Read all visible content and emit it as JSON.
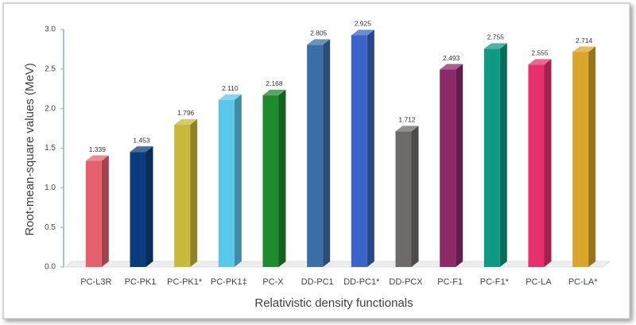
{
  "chart_data": {
    "type": "bar3d",
    "y_label": "Root-mean-square values (MeV)",
    "x_label": "Relativistic density functionals",
    "categories": [
      "PC-L3R",
      "PC-PK1",
      "PC-PK1*",
      "PC-PK1‡",
      "PC-X",
      "DD-PC1",
      "DD-PC1*",
      "DD-PCX",
      "PC-F1",
      "PC-F1*",
      "PC-LA",
      "PC-LA*"
    ],
    "values": [
      1.339,
      1.453,
      1.796,
      2.11,
      2.168,
      2.805,
      2.925,
      1.712,
      2.493,
      2.755,
      2.555,
      2.714
    ],
    "value_labels": [
      "1.339",
      "1.453",
      "1.796",
      "2.110",
      "2.168",
      "2.805",
      "2.925",
      "1.712",
      "2.493",
      "2.755",
      "2.555",
      "2.714"
    ],
    "colors": [
      "#e8606e",
      "#0b3d7e",
      "#c9b83a",
      "#5ac8ea",
      "#1f8a2e",
      "#3a6ea8",
      "#3a64c8",
      "#6e6a6a",
      "#8e2a6a",
      "#0e9a82",
      "#e8306e",
      "#d9a52a"
    ],
    "ylim": [
      0,
      3
    ],
    "yticks": [
      {
        "value": 0,
        "label": "0.0"
      },
      0.5,
      {
        "value": 1,
        "label": "1.0"
      },
      1.5,
      {
        "value": 2,
        "label": "2.0"
      },
      2.5,
      {
        "value": 3,
        "label": "3.0"
      }
    ],
    "grid": false
  }
}
